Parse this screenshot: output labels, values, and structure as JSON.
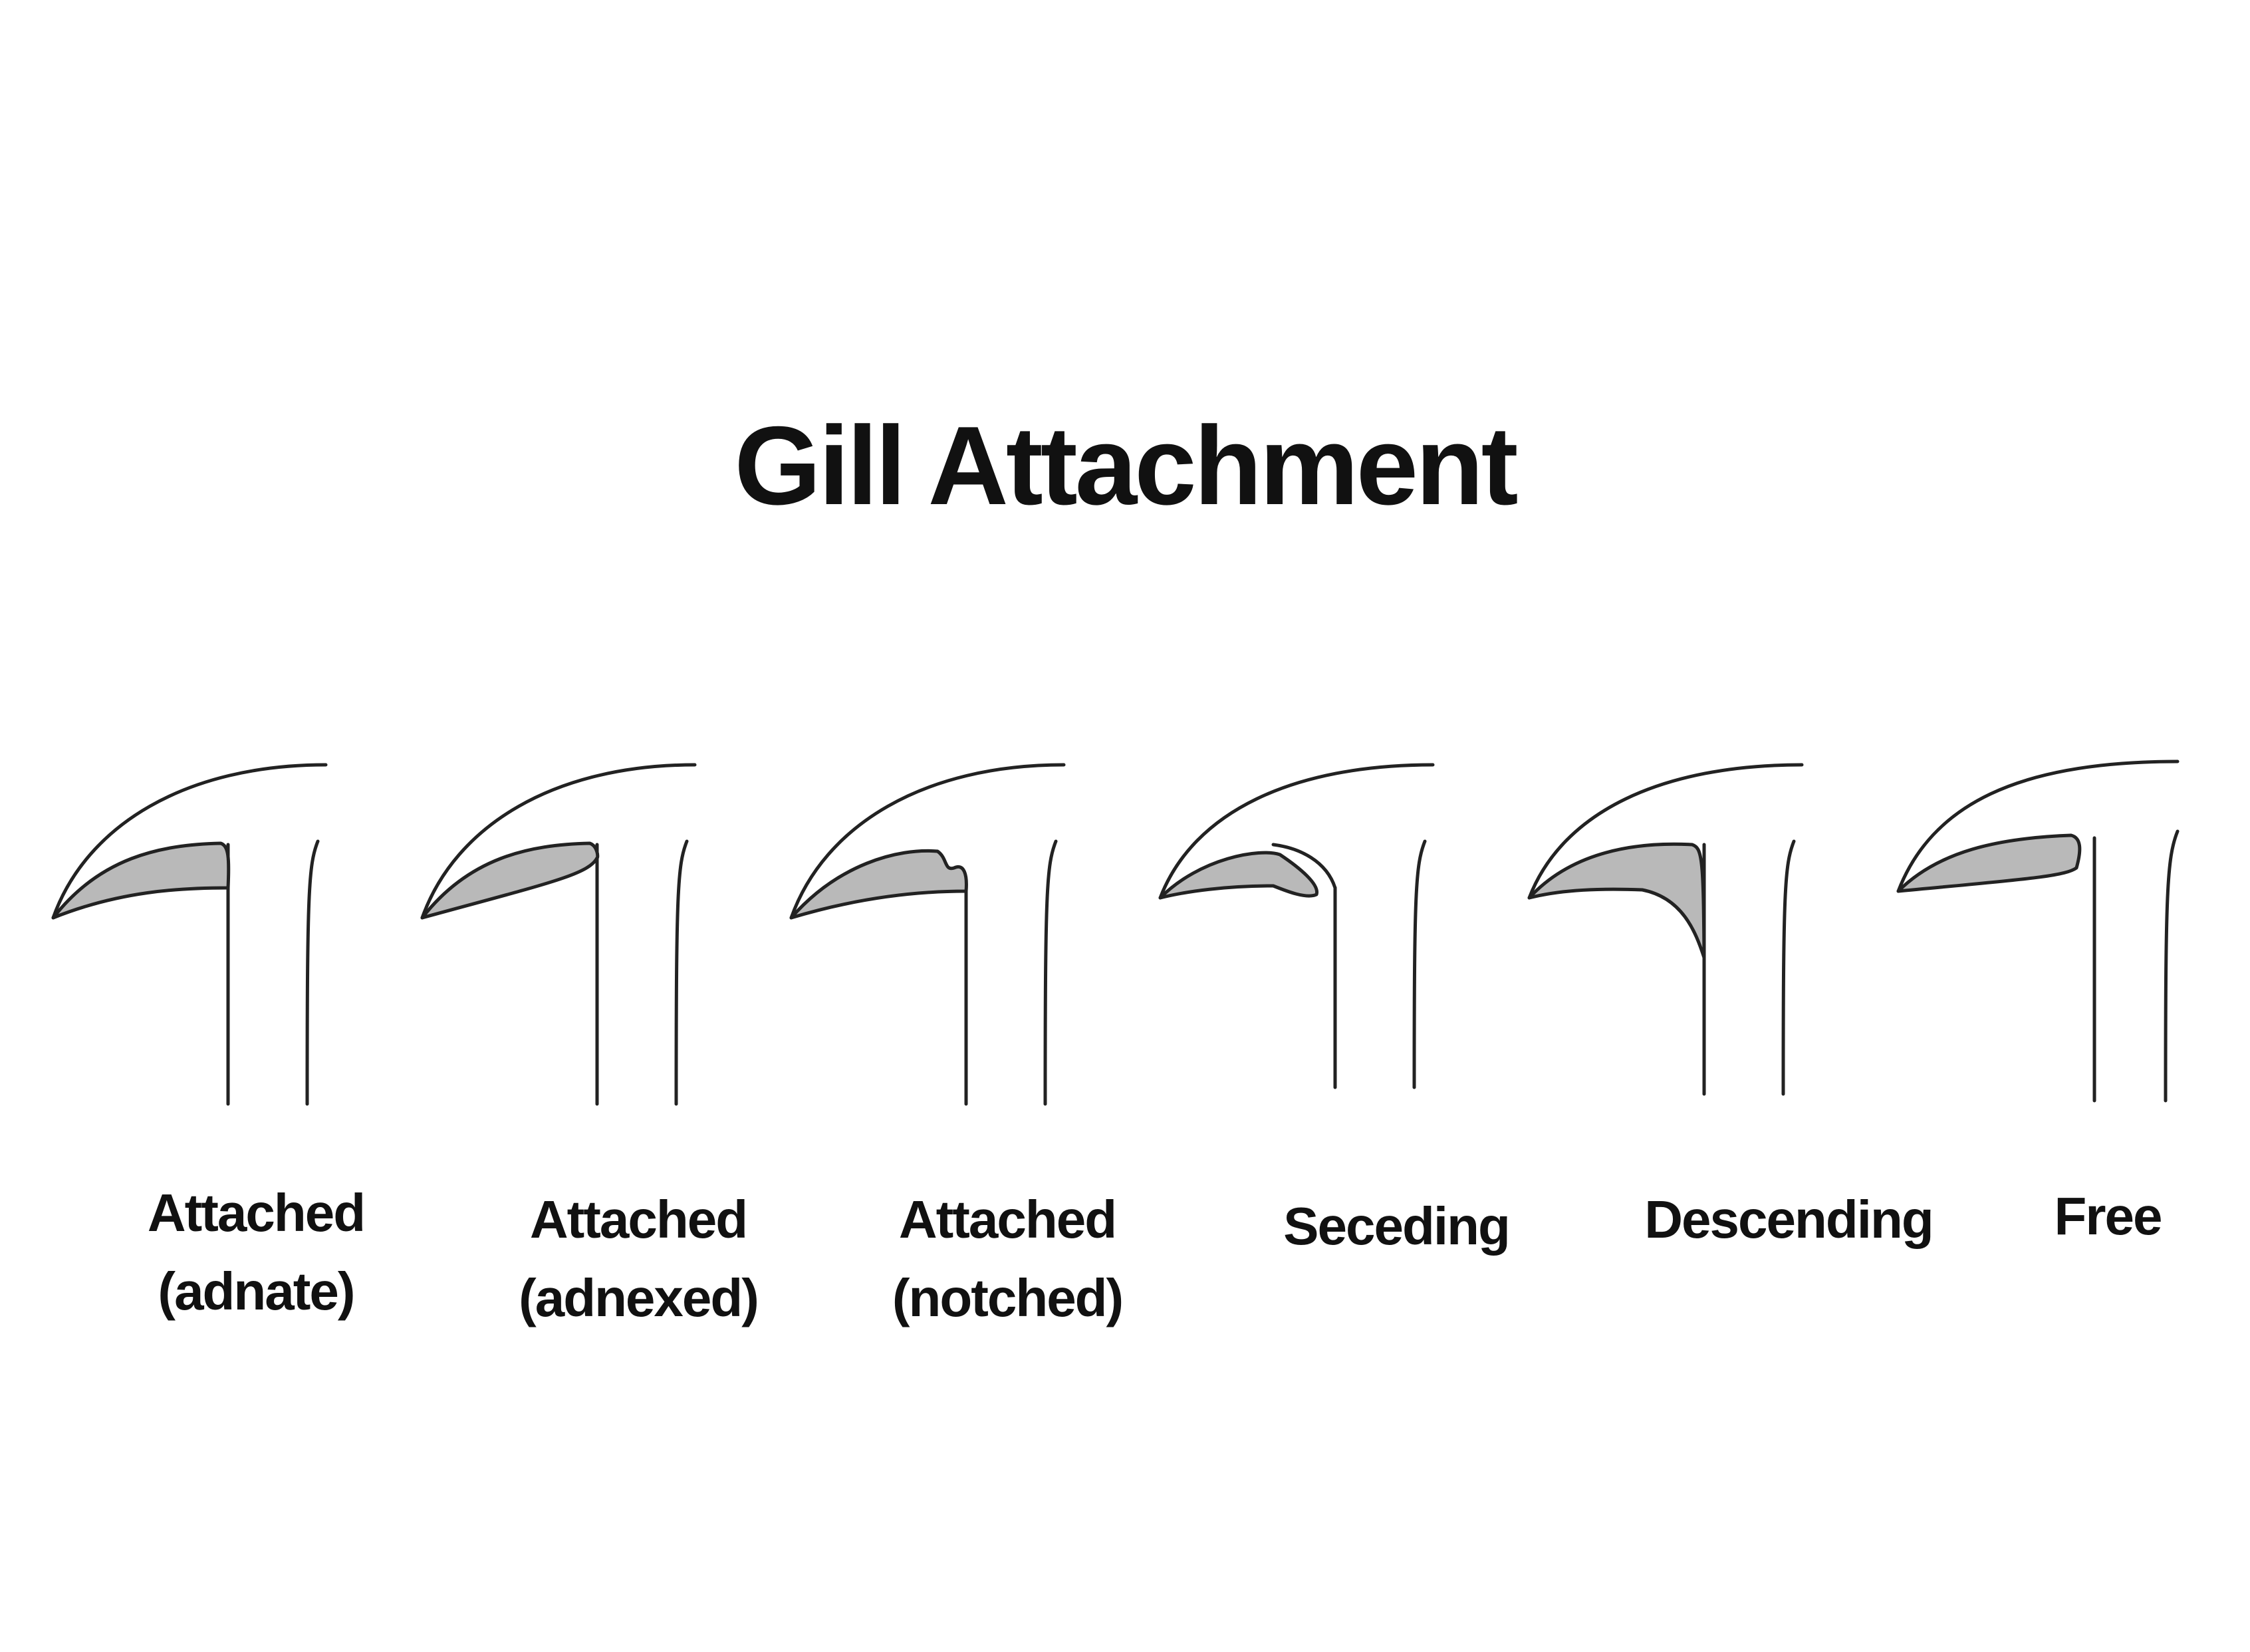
{
  "title": "Gill Attachment",
  "gill_fill_color": "#b9b9b9",
  "outline_color": "#222222",
  "types": [
    {
      "id": "adnate",
      "line1": "Attached",
      "line2": "(adnate)"
    },
    {
      "id": "adnexed",
      "line1": "Attached",
      "line2": "(adnexed)"
    },
    {
      "id": "notched",
      "line1": "Attached",
      "line2": "(notched)"
    },
    {
      "id": "seceding",
      "line1": "Seceding",
      "line2": ""
    },
    {
      "id": "descending",
      "line1": "Descending",
      "line2": ""
    },
    {
      "id": "free",
      "line1": "Free",
      "line2": ""
    }
  ]
}
